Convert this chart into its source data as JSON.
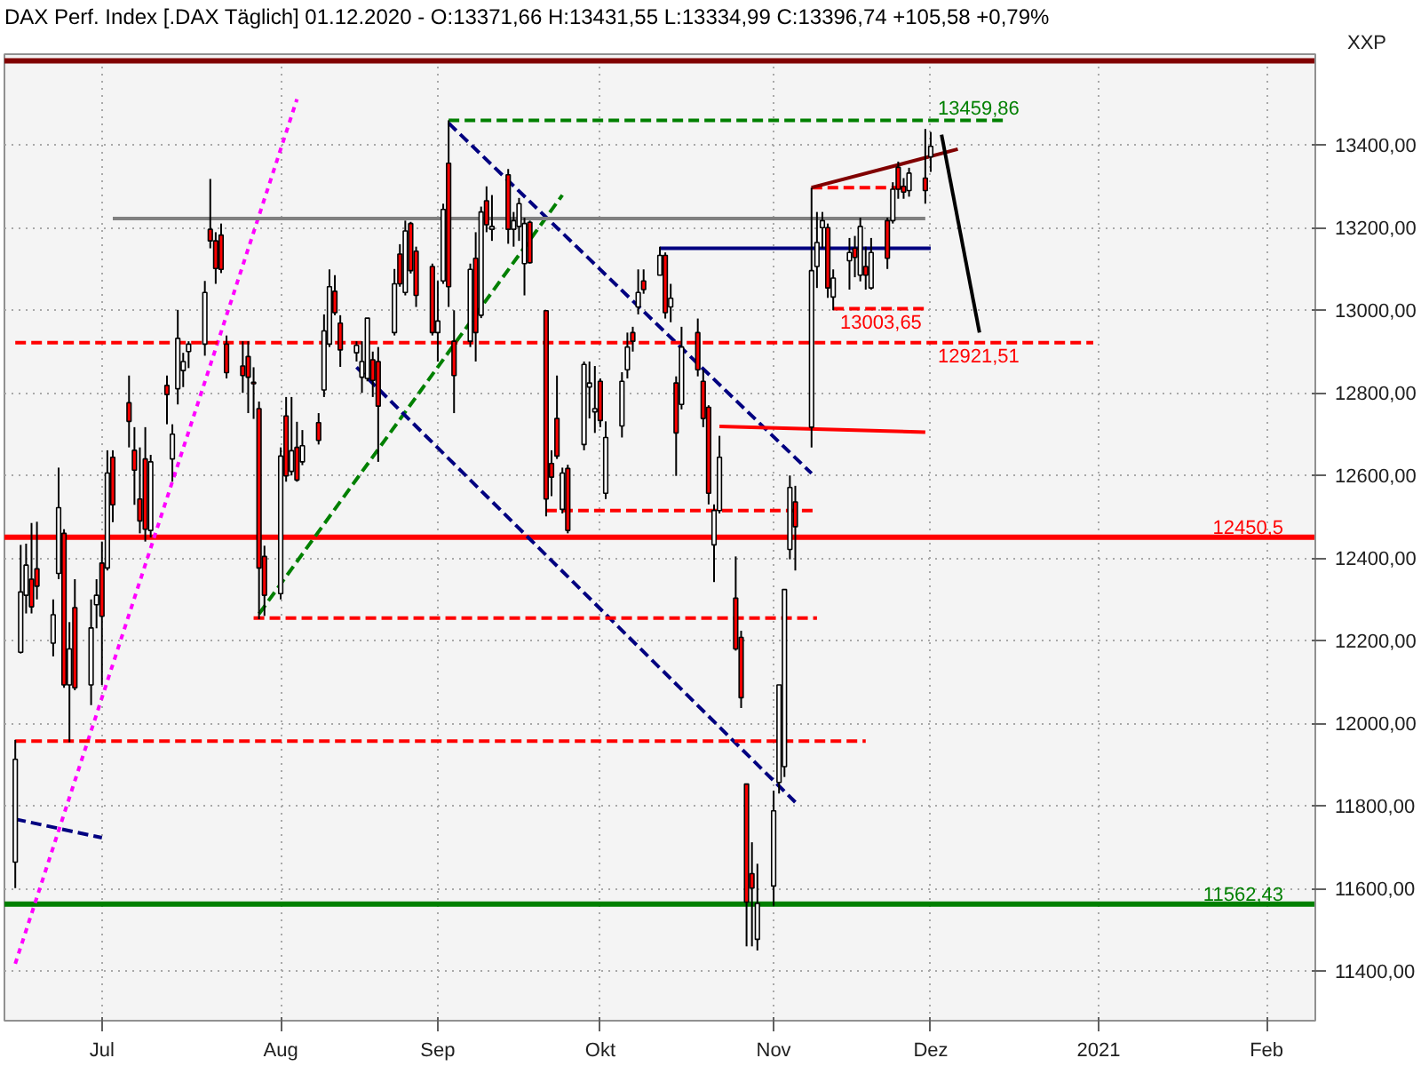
{
  "chart_data": {
    "type": "candlestick",
    "title": "DAX Perf. Index [.DAX Täglich] 01.12.2020 - O:13371,66 H:13431,55 L:13334,99 C:13396,74 +105,58 +0,79%",
    "ylabel": "XXP",
    "x": [
      "2020-06-15",
      "2020-06-16",
      "2020-06-17",
      "2020-06-18",
      "2020-06-19",
      "2020-06-22",
      "2020-06-23",
      "2020-06-24",
      "2020-06-25",
      "2020-06-26",
      "2020-06-29",
      "2020-06-30",
      "2020-07-01",
      "2020-07-02",
      "2020-07-03",
      "2020-07-06",
      "2020-07-07",
      "2020-07-08",
      "2020-07-09",
      "2020-07-10",
      "2020-07-13",
      "2020-07-14",
      "2020-07-15",
      "2020-07-16",
      "2020-07-17",
      "2020-07-20",
      "2020-07-21",
      "2020-07-22",
      "2020-07-23",
      "2020-07-24",
      "2020-07-27",
      "2020-07-28",
      "2020-07-29",
      "2020-07-30",
      "2020-07-31",
      "2020-08-03",
      "2020-08-04",
      "2020-08-05",
      "2020-08-06",
      "2020-08-07",
      "2020-08-10",
      "2020-08-11",
      "2020-08-12",
      "2020-08-13",
      "2020-08-14",
      "2020-08-17",
      "2020-08-18",
      "2020-08-19",
      "2020-08-20",
      "2020-08-21",
      "2020-08-24",
      "2020-08-25",
      "2020-08-26",
      "2020-08-27",
      "2020-08-28",
      "2020-08-31",
      "2020-09-01",
      "2020-09-02",
      "2020-09-03",
      "2020-09-04",
      "2020-09-07",
      "2020-09-08",
      "2020-09-09",
      "2020-09-10",
      "2020-09-11",
      "2020-09-14",
      "2020-09-15",
      "2020-09-16",
      "2020-09-17",
      "2020-09-18",
      "2020-09-21",
      "2020-09-22",
      "2020-09-23",
      "2020-09-24",
      "2020-09-25",
      "2020-09-28",
      "2020-09-29",
      "2020-09-30",
      "2020-10-01",
      "2020-10-02",
      "2020-10-05",
      "2020-10-06",
      "2020-10-07",
      "2020-10-08",
      "2020-10-09",
      "2020-10-12",
      "2020-10-13",
      "2020-10-14",
      "2020-10-15",
      "2020-10-16",
      "2020-10-19",
      "2020-10-20",
      "2020-10-21",
      "2020-10-22",
      "2020-10-23",
      "2020-10-26",
      "2020-10-27",
      "2020-10-28",
      "2020-10-29",
      "2020-10-30",
      "2020-11-02",
      "2020-11-03",
      "2020-11-04",
      "2020-11-05",
      "2020-11-06",
      "2020-11-09",
      "2020-11-10",
      "2020-11-11",
      "2020-11-12",
      "2020-11-13",
      "2020-11-16",
      "2020-11-17",
      "2020-11-18",
      "2020-11-19",
      "2020-11-20",
      "2020-11-23",
      "2020-11-24",
      "2020-11-25",
      "2020-11-26",
      "2020-11-27",
      "2020-11-30",
      "2020-12-01"
    ],
    "ohlc": [
      [
        11664,
        11960,
        11601,
        11913
      ],
      [
        12172,
        12432,
        12169,
        12318
      ],
      [
        12310,
        12435,
        12266,
        12383
      ],
      [
        12349,
        12485,
        12266,
        12282
      ],
      [
        12374,
        12488,
        12300,
        12332
      ],
      [
        12194,
        12300,
        12162,
        12263
      ],
      [
        12363,
        12619,
        12349,
        12522
      ],
      [
        12460,
        12470,
        12086,
        12093
      ],
      [
        12093,
        12245,
        11954,
        12180
      ],
      [
        12280,
        12349,
        12080,
        12086
      ],
      [
        12093,
        12300,
        12044,
        12231
      ],
      [
        12287,
        12349,
        12230,
        12310
      ],
      [
        12388,
        12440,
        12093,
        12259
      ],
      [
        12376,
        12661,
        12370,
        12606
      ],
      [
        12644,
        12661,
        12487,
        12529
      ],
      [
        12776,
        12842,
        12668,
        12731
      ],
      [
        12661,
        12717,
        12529,
        12613
      ],
      [
        12543,
        12668,
        12460,
        12490
      ],
      [
        12640,
        12717,
        12440,
        12470
      ],
      [
        12467,
        12650,
        12450,
        12633
      ],
      [
        12818,
        12842,
        12724,
        12796
      ],
      [
        12640,
        12724,
        12585,
        12700
      ],
      [
        12810,
        13001,
        12772,
        12932
      ],
      [
        12854,
        12897,
        12814,
        12876
      ],
      [
        12900,
        12925,
        12860,
        12918
      ],
      [
        12918,
        13071,
        12890,
        13043
      ],
      [
        13196,
        13318,
        13150,
        13168
      ],
      [
        13168,
        13189,
        13064,
        13101
      ],
      [
        13182,
        13210,
        13090,
        13099
      ],
      [
        12918,
        12939,
        12835,
        12849
      ],
      [
        12865,
        12925,
        12800,
        12842
      ],
      [
        12888,
        12925,
        12751,
        12838
      ],
      [
        12826,
        12862,
        12737,
        12822
      ],
      [
        12762,
        12779,
        12252,
        12376
      ],
      [
        12404,
        12430,
        12260,
        12310
      ],
      [
        12314,
        12668,
        12300,
        12647
      ],
      [
        12744,
        12790,
        12585,
        12599
      ],
      [
        12610,
        12790,
        12600,
        12660
      ],
      [
        12668,
        12730,
        12585,
        12589
      ],
      [
        12633,
        12710,
        12625,
        12672
      ],
      [
        12728,
        12751,
        12675,
        12685
      ],
      [
        12807,
        12990,
        12790,
        12950
      ],
      [
        12918,
        13099,
        12911,
        13057
      ],
      [
        13046,
        13085,
        12988,
        12994
      ],
      [
        12969,
        12988,
        12863,
        12904
      ],
      [
        12897,
        12925,
        12876,
        12915
      ],
      [
        12838,
        12925,
        12800,
        12876
      ],
      [
        12835,
        12981,
        12828,
        12981
      ],
      [
        12880,
        12900,
        12790,
        12830
      ],
      [
        12876,
        12911,
        12633,
        12768
      ],
      [
        12946,
        13100,
        12939,
        13064
      ],
      [
        13136,
        13160,
        13057,
        13064
      ],
      [
        13043,
        13217,
        13036,
        13192
      ],
      [
        13210,
        13214,
        13089,
        13096
      ],
      [
        13143,
        13154,
        13008,
        13036
      ],
      [
        13106,
        13113,
        12939,
        12946
      ],
      [
        12946,
        13071,
        12876,
        12974
      ],
      [
        13071,
        13258,
        13064,
        13244
      ],
      [
        13356,
        13460,
        13008,
        13057
      ],
      [
        12925,
        13000,
        12751,
        12842
      ],
      [
        12925,
        13113,
        12911,
        13099
      ],
      [
        13126,
        13189,
        12876,
        12946
      ],
      [
        12988,
        13251,
        12981,
        13238
      ],
      [
        13265,
        13300,
        13189,
        13207
      ],
      [
        13196,
        13279,
        13168,
        13203
      ],
      [
        13328,
        13342,
        13161,
        13196
      ],
      [
        13196,
        13238,
        13154,
        13217
      ],
      [
        13203,
        13272,
        13168,
        13258
      ],
      [
        13113,
        13224,
        13036,
        13210
      ],
      [
        13213,
        13217,
        13113,
        13115
      ],
      [
        12999,
        12999,
        12501,
        12543
      ],
      [
        12629,
        12661,
        12550,
        12596
      ],
      [
        12738,
        12842,
        12640,
        12647
      ],
      [
        12518,
        12619,
        12508,
        12606
      ],
      [
        12617,
        12626,
        12460,
        12467
      ],
      [
        12675,
        12876,
        12661,
        12869
      ],
      [
        12814,
        12876,
        12738,
        12824
      ],
      [
        12754,
        12865,
        12703,
        12762
      ],
      [
        12828,
        12835,
        12717,
        12733
      ],
      [
        12557,
        12731,
        12543,
        12692
      ],
      [
        12720,
        12850,
        12692,
        12828
      ],
      [
        12856,
        12946,
        12835,
        12911
      ],
      [
        12946,
        12960,
        12900,
        12925
      ],
      [
        13008,
        13099,
        12990,
        13043
      ],
      [
        13071,
        13099,
        13040,
        13050
      ],
      [
        13085,
        13154,
        13085,
        13133
      ],
      [
        13133,
        13140,
        12980,
        12994
      ],
      [
        13008,
        13064,
        12971,
        13029
      ],
      [
        12824,
        12840,
        12599,
        12703
      ],
      [
        12772,
        12960,
        12760,
        12911
      ],
      [
        12946,
        12980,
        12840,
        12856
      ],
      [
        12828,
        12856,
        12717,
        12738
      ],
      [
        12765,
        12770,
        12530,
        12557
      ],
      [
        12432,
        12530,
        12342,
        12515
      ],
      [
        12515,
        12696,
        12508,
        12644
      ],
      [
        12303,
        12404,
        12176,
        12180
      ],
      [
        12208,
        12224,
        12037,
        12062
      ],
      [
        11853,
        11853,
        11460,
        11567
      ],
      [
        11636,
        11712,
        11460,
        11601
      ],
      [
        11477,
        11660,
        11450,
        11564
      ],
      [
        11606,
        11837,
        11558,
        11788
      ],
      [
        11857,
        12093,
        11830,
        12093
      ],
      [
        11895,
        12324,
        11870,
        12324
      ],
      [
        12421,
        12600,
        12397,
        12571
      ],
      [
        12536,
        12575,
        12370,
        12476
      ],
      [
        12717,
        13297,
        12668,
        13096
      ],
      [
        13106,
        13238,
        13054,
        13164
      ],
      [
        13200,
        13238,
        13150,
        13217
      ],
      [
        13200,
        13210,
        13030,
        13054
      ],
      [
        13032,
        13099,
        13000,
        13078
      ],
      [
        13120,
        13175,
        13050,
        13140
      ],
      [
        13150,
        13180,
        13080,
        13128
      ],
      [
        13085,
        13224,
        13070,
        13203
      ],
      [
        13106,
        13154,
        13050,
        13085
      ],
      [
        13054,
        13175,
        13050,
        13140
      ],
      [
        13217,
        13224,
        13100,
        13126
      ],
      [
        13217,
        13310,
        13210,
        13293
      ],
      [
        13346,
        13360,
        13270,
        13293
      ],
      [
        13300,
        13320,
        13270,
        13286
      ],
      [
        13290,
        13345,
        13275,
        13332
      ],
      [
        13320,
        13439,
        13258,
        13290
      ],
      [
        13371.66,
        13431.55,
        13334.99,
        13396.74
      ]
    ],
    "colors": [
      "#ffffff",
      "#ffffff",
      "#ffffff",
      "#ff0000",
      "#ff0000",
      "#ffffff",
      "#ffffff",
      "#ff0000",
      "#ffffff",
      "#ff0000",
      "#ffffff",
      "#ffffff",
      "#ff0000",
      "#ffffff",
      "#ff0000",
      "#ff0000",
      "#ff0000",
      "#ff0000",
      "#ff0000",
      "#ffffff",
      "#ff0000",
      "#ffffff",
      "#ffffff",
      "#ffffff",
      "#ffffff",
      "#ffffff",
      "#ff0000",
      "#ff0000",
      "#ff0000",
      "#ff0000",
      "#ff0000",
      "#ff0000",
      "#ff0000",
      "#ff0000",
      "#ff0000",
      "#ffffff",
      "#ff0000",
      "#ffffff",
      "#ff0000",
      "#ffffff",
      "#ff0000",
      "#ffffff",
      "#ffffff",
      "#ff0000",
      "#ff0000",
      "#ffffff",
      "#ffffff",
      "#ffffff",
      "#ff0000",
      "#ff0000",
      "#ffffff",
      "#ff0000",
      "#ffffff",
      "#ff0000",
      "#ff0000",
      "#ff0000",
      "#ffffff",
      "#ffffff",
      "#ff0000",
      "#ff0000",
      "#ffffff",
      "#ff0000",
      "#ffffff",
      "#ff0000",
      "#ffffff",
      "#ff0000",
      "#ffffff",
      "#ffffff",
      "#ffffff",
      "#ff0000",
      "#ff0000",
      "#ff0000",
      "#ff0000",
      "#ffffff",
      "#ff0000",
      "#ffffff",
      "#ffffff",
      "#ffffff",
      "#ff0000",
      "#ffffff",
      "#ffffff",
      "#ffffff",
      "#ff0000",
      "#ffffff",
      "#ff0000",
      "#ffffff",
      "#ff0000",
      "#ffffff",
      "#ff0000",
      "#ffffff",
      "#ff0000",
      "#ff0000",
      "#ff0000",
      "#ffffff",
      "#ffffff",
      "#ff0000",
      "#ff0000",
      "#ff0000",
      "#ff0000",
      "#ffffff",
      "#ffffff",
      "#ffffff",
      "#ffffff",
      "#ffffff",
      "#ff0000",
      "#ffffff",
      "#ffffff",
      "#ffffff",
      "#ff0000",
      "#ffffff",
      "#ffffff",
      "#ff0000",
      "#ffffff",
      "#ff0000",
      "#ffffff",
      "#ff0000",
      "#ffffff",
      "#ff0000",
      "#ff0000",
      "#ffffff",
      "#ff0000",
      "#ffffff"
    ],
    "color": "#000000",
    "xlim": [
      "2020-06-13",
      "2021-02-10"
    ],
    "ylim": [
      11280,
      13620
    ],
    "xticks": [
      {
        "value": "2020-07-01",
        "label": "Jul"
      },
      {
        "value": "2020-08-03",
        "label": "Aug"
      },
      {
        "value": "2020-09-01",
        "label": "Sep"
      },
      {
        "value": "2020-10-01",
        "label": "Okt"
      },
      {
        "value": "2020-11-02",
        "label": "Nov"
      },
      {
        "value": "2020-12-01",
        "label": "Dez"
      },
      {
        "value": "2021-01-01",
        "label": "2021"
      },
      {
        "value": "2021-02-01",
        "label": "Feb"
      }
    ],
    "yticks": [
      {
        "value": 11400,
        "label": "11400,00"
      },
      {
        "value": 11600,
        "label": "11600,00"
      },
      {
        "value": 11800,
        "label": "11800,00"
      },
      {
        "value": 12000,
        "label": "12000,00"
      },
      {
        "value": 12200,
        "label": "12200,00"
      },
      {
        "value": 12400,
        "label": "12400,00"
      },
      {
        "value": 12600,
        "label": "12600,00"
      },
      {
        "value": 12800,
        "label": "12800,00"
      },
      {
        "value": 13000,
        "label": "13000,00"
      },
      {
        "value": 13200,
        "label": "13200,00"
      },
      {
        "value": 13400,
        "label": "13400,00"
      }
    ],
    "grid": true,
    "ref_lines": [
      {
        "axis": "y",
        "value": 12450.5,
        "label": "12450,5",
        "color": "#ff0000"
      },
      {
        "axis": "y",
        "value": 11562.43,
        "label": "11562,43",
        "color": "#008000"
      },
      {
        "axis": "y",
        "value": 13604,
        "color": "#800000"
      }
    ],
    "series": [
      {
        "type": "line",
        "x": [
          "2020-06-15",
          "2020-08-06"
        ],
        "values": [
          11418,
          13511
        ],
        "color": "#ff00ff",
        "line_style": "dotted"
      },
      {
        "type": "line",
        "x": [
          "2020-07-30",
          "2020-09-24"
        ],
        "values": [
          12265,
          13279
        ],
        "color": "#008000",
        "line_style": "dashed"
      },
      {
        "type": "line",
        "name": "13459,86",
        "x": [
          "2020-09-03",
          "2020-12-15"
        ],
        "values": [
          13459.86,
          13459.86
        ],
        "color": "#008000",
        "line_style": "dashed"
      },
      {
        "type": "line",
        "x": [
          "2020-09-03",
          "2020-11-09"
        ],
        "values": [
          13453,
          12605
        ],
        "color": "#000080",
        "line_style": "dashed"
      },
      {
        "type": "line",
        "x": [
          "2020-08-17",
          "2020-11-06"
        ],
        "values": [
          12862,
          11809
        ],
        "color": "#000080",
        "line_style": "dashed"
      },
      {
        "type": "line",
        "x": [
          "2020-06-15",
          "2020-07-01"
        ],
        "values": [
          11768,
          11723
        ],
        "color": "#000080",
        "line_style": "dashed"
      },
      {
        "type": "line",
        "x": [
          "2020-07-03",
          "2020-11-30"
        ],
        "values": [
          13222,
          13222
        ],
        "color": "#808080",
        "line_style": "solid"
      },
      {
        "type": "line",
        "name": "12921,51",
        "x": [
          "2020-06-15",
          "2020-12-31"
        ],
        "values": [
          12921.51,
          12921.51
        ],
        "color": "#ff0000",
        "line_style": "dashed"
      },
      {
        "type": "line",
        "x": [
          "2020-07-29",
          "2020-11-10"
        ],
        "values": [
          12255,
          12255
        ],
        "color": "#ff0000",
        "line_style": "dashed"
      },
      {
        "type": "line",
        "x": [
          "2020-06-15",
          "2020-11-19"
        ],
        "values": [
          11957,
          11957
        ],
        "color": "#ff0000",
        "line_style": "dashed"
      },
      {
        "type": "line",
        "x": [
          "2020-09-21",
          "2020-11-10"
        ],
        "values": [
          12515,
          12515
        ],
        "color": "#ff0000",
        "line_style": "dashed"
      },
      {
        "type": "line",
        "x": [
          "2020-10-23",
          "2020-11-30"
        ],
        "values": [
          12719,
          12705
        ],
        "color": "#ff0000",
        "line_style": "solid"
      },
      {
        "type": "line",
        "x": [
          "2020-10-12",
          "2020-12-01"
        ],
        "values": [
          13150,
          13150
        ],
        "color": "#000080",
        "line_style": "solid"
      },
      {
        "type": "line",
        "name": "13003,65",
        "x": [
          "2020-11-13",
          "2020-11-30"
        ],
        "values": [
          13003.65,
          13003.65
        ],
        "color": "#ff0000",
        "line_style": "dashed"
      },
      {
        "type": "line",
        "x": [
          "2020-11-09",
          "2020-11-27"
        ],
        "values": [
          13297,
          13297
        ],
        "color": "#ff0000",
        "line_style": "dashed"
      },
      {
        "type": "line",
        "x": [
          "2020-11-09",
          "2020-12-06"
        ],
        "values": [
          13297,
          13390
        ],
        "color": "#800000",
        "line_style": "solid"
      },
      {
        "type": "line",
        "x": [
          "2020-12-03",
          "2020-12-10"
        ],
        "values": [
          13425,
          12946
        ],
        "color": "#000000",
        "line_style": "solid"
      }
    ]
  }
}
